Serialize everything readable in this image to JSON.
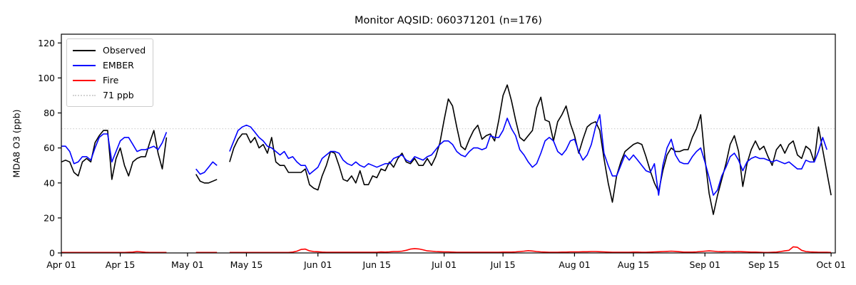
{
  "title": "Monitor AQSID: 060371201 (n=176)",
  "axes": {
    "ylabel": "MDA8 O3 (ppb)",
    "yticks": [
      0,
      20,
      40,
      60,
      80,
      100,
      120
    ],
    "ylim": [
      0,
      125
    ],
    "xlim_days": [
      0,
      184
    ],
    "xticks": [
      {
        "day": 0,
        "label": "Apr 01"
      },
      {
        "day": 14,
        "label": "Apr 15"
      },
      {
        "day": 30,
        "label": "May 01"
      },
      {
        "day": 44,
        "label": "May 15"
      },
      {
        "day": 61,
        "label": "Jun 01"
      },
      {
        "day": 75,
        "label": "Jun 15"
      },
      {
        "day": 91,
        "label": "Jul 01"
      },
      {
        "day": 105,
        "label": "Jul 15"
      },
      {
        "day": 122,
        "label": "Aug 01"
      },
      {
        "day": 136,
        "label": "Aug 15"
      },
      {
        "day": 153,
        "label": "Sep 01"
      },
      {
        "day": 167,
        "label": "Sep 15"
      },
      {
        "day": 183,
        "label": "Oct 01"
      }
    ]
  },
  "legend": [
    {
      "label": "Observed",
      "color": "#000000",
      "style": "solid"
    },
    {
      "label": "EMBER",
      "color": "#0000ff",
      "style": "solid"
    },
    {
      "label": "Fire",
      "color": "#ff0000",
      "style": "solid"
    },
    {
      "label": "71 ppb",
      "color": "#d3d3d3",
      "style": "dotted"
    }
  ],
  "reference_line": {
    "label": "71 ppb",
    "value": 71,
    "color": "#d3d3d3",
    "style": "dotted"
  },
  "chart_data": {
    "type": "line",
    "title": "Monitor AQSID: 060371201 (n=176)",
    "xlabel": "",
    "ylabel": "MDA8 O3 (ppb)",
    "x_unit": "day index from Apr 01 (daily values; null = missing day)",
    "x_range_labels": [
      "Apr 01",
      "Oct 01"
    ],
    "ylim": [
      0,
      125
    ],
    "grid": false,
    "legend_position": "upper left",
    "series": [
      {
        "name": "Observed",
        "color": "#000000",
        "values": [
          52,
          53,
          52,
          46,
          44,
          52,
          54,
          52,
          63,
          67,
          70,
          70,
          42,
          54,
          60,
          50,
          44,
          52,
          54,
          55,
          55,
          63,
          70,
          57,
          48,
          66,
          null,
          null,
          null,
          null,
          null,
          null,
          45,
          41,
          40,
          40,
          41,
          42,
          null,
          null,
          52,
          60,
          65,
          68,
          68,
          63,
          66,
          60,
          62,
          57,
          66,
          52,
          50,
          50,
          46,
          46,
          46,
          46,
          48,
          39,
          37,
          36,
          44,
          50,
          58,
          57,
          50,
          42,
          41,
          44,
          40,
          47,
          39,
          39,
          44,
          43,
          48,
          47,
          52,
          49,
          54,
          57,
          52,
          51,
          54,
          50,
          50,
          54,
          50,
          55,
          63,
          76,
          88,
          84,
          72,
          61,
          59,
          65,
          70,
          73,
          65,
          67,
          68,
          64,
          76,
          90,
          96,
          87,
          76,
          66,
          64,
          67,
          70,
          83,
          89,
          76,
          75,
          64,
          75,
          79,
          84,
          74,
          67,
          57,
          65,
          72,
          74,
          75,
          70,
          54,
          40,
          29,
          44,
          52,
          58,
          60,
          62,
          63,
          62,
          55,
          47,
          40,
          35,
          47,
          56,
          60,
          58,
          58,
          59,
          59,
          66,
          71,
          79,
          54,
          34,
          22,
          33,
          42,
          51,
          62,
          67,
          58,
          38,
          51,
          59,
          64,
          59,
          61,
          55,
          50,
          59,
          62,
          57,
          62,
          64,
          56,
          54,
          61,
          59,
          52,
          72,
          59,
          46,
          33
        ]
      },
      {
        "name": "EMBER",
        "color": "#0000ff",
        "values": [
          61,
          61,
          58,
          51,
          52,
          55,
          55,
          53,
          60,
          66,
          68,
          68,
          52,
          58,
          64,
          66,
          66,
          62,
          58,
          59,
          59,
          60,
          61,
          59,
          63,
          69,
          null,
          null,
          null,
          null,
          null,
          null,
          48,
          45,
          46,
          49,
          52,
          50,
          null,
          null,
          58,
          64,
          70,
          72,
          73,
          72,
          69,
          66,
          64,
          61,
          60,
          58,
          56,
          58,
          54,
          55,
          52,
          50,
          50,
          45,
          47,
          49,
          54,
          56,
          58,
          58,
          57,
          53,
          51,
          50,
          52,
          50,
          49,
          51,
          50,
          49,
          50,
          51,
          51,
          54,
          55,
          56,
          53,
          52,
          55,
          54,
          53,
          55,
          56,
          59,
          62,
          64,
          64,
          62,
          58,
          56,
          55,
          58,
          60,
          60,
          59,
          60,
          67,
          66,
          66,
          70,
          77,
          71,
          67,
          59,
          56,
          52,
          49,
          51,
          57,
          64,
          66,
          64,
          58,
          56,
          59,
          64,
          65,
          58,
          53,
          56,
          62,
          72,
          79,
          57,
          50,
          44,
          44,
          50,
          56,
          53,
          56,
          53,
          50,
          47,
          46,
          51,
          33,
          50,
          60,
          65,
          56,
          52,
          51,
          51,
          55,
          58,
          60,
          52,
          43,
          33,
          36,
          44,
          49,
          55,
          57,
          53,
          47,
          52,
          54,
          55,
          54,
          54,
          53,
          52,
          53,
          52,
          51,
          52,
          50,
          48,
          48,
          53,
          52,
          52,
          58,
          66,
          59,
          null
        ]
      },
      {
        "name": "Fire",
        "color": "#ff0000",
        "values": [
          0.3,
          0.3,
          0.3,
          0.3,
          0.3,
          0.3,
          0.3,
          0.3,
          0.3,
          0.3,
          0.3,
          0.3,
          0.3,
          0.3,
          0.3,
          0.3,
          0.4,
          0.5,
          0.8,
          0.6,
          0.4,
          0.3,
          0.3,
          0.3,
          0.3,
          0.3,
          null,
          null,
          null,
          null,
          null,
          null,
          0.3,
          0.3,
          0.3,
          0.3,
          0.3,
          0.3,
          null,
          null,
          0.3,
          0.3,
          0.3,
          0.3,
          0.3,
          0.3,
          0.3,
          0.3,
          0.3,
          0.3,
          0.3,
          0.3,
          0.3,
          0.3,
          0.3,
          0.5,
          1.0,
          2.0,
          2.2,
          1.2,
          0.8,
          0.7,
          0.5,
          0.4,
          0.4,
          0.4,
          0.4,
          0.4,
          0.4,
          0.4,
          0.4,
          0.4,
          0.4,
          0.4,
          0.4,
          0.4,
          0.6,
          0.5,
          0.6,
          0.8,
          0.8,
          1.0,
          1.5,
          2.2,
          2.5,
          2.3,
          1.8,
          1.2,
          1.0,
          0.8,
          0.7,
          0.6,
          0.6,
          0.5,
          0.4,
          0.4,
          0.4,
          0.4,
          0.4,
          0.4,
          0.4,
          0.4,
          0.4,
          0.4,
          0.4,
          0.5,
          0.5,
          0.5,
          0.6,
          0.8,
          1.0,
          1.3,
          1.1,
          0.8,
          0.6,
          0.5,
          0.4,
          0.4,
          0.4,
          0.5,
          0.5,
          0.6,
          0.6,
          0.6,
          0.7,
          0.7,
          0.8,
          0.8,
          0.7,
          0.6,
          0.5,
          0.4,
          0.4,
          0.4,
          0.4,
          0.4,
          0.5,
          0.5,
          0.4,
          0.4,
          0.5,
          0.6,
          0.7,
          0.8,
          0.9,
          1.0,
          0.9,
          0.7,
          0.5,
          0.5,
          0.5,
          0.6,
          0.8,
          1.0,
          1.2,
          1.0,
          0.8,
          0.7,
          0.8,
          0.8,
          0.7,
          0.8,
          0.7,
          0.6,
          0.5,
          0.5,
          0.4,
          0.3,
          0.3,
          0.4,
          0.5,
          0.8,
          1.2,
          1.5,
          3.5,
          3.2,
          1.5,
          0.8,
          0.6,
          0.5,
          0.4,
          0.4,
          0.4,
          0.3
        ]
      }
    ]
  }
}
